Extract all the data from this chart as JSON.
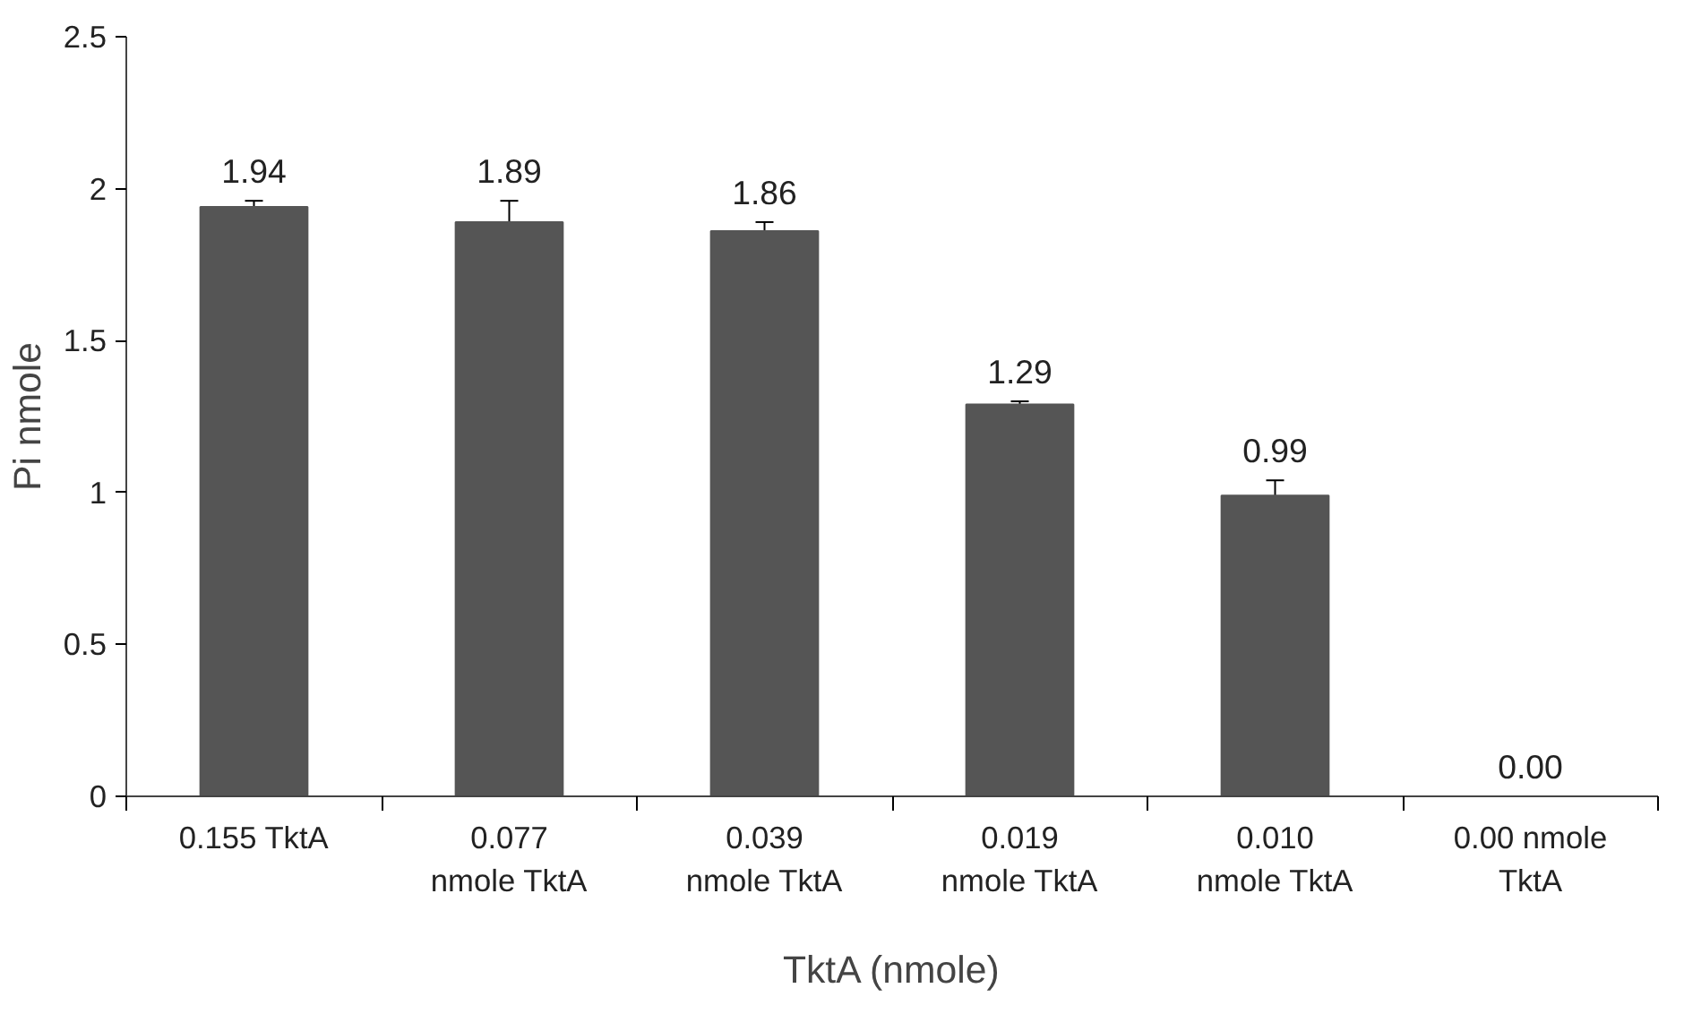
{
  "chart_data": {
    "type": "bar",
    "xlabel": "TktA (nmole)",
    "ylabel": "Pi nmole",
    "categories": [
      "0.155 TktA",
      "0.077\nnmole TktA",
      "0.039\nnmole TktA",
      "0.019\nnmole TktA",
      "0.010\nnmole TktA",
      "0.00 nmole\nTktA"
    ],
    "values": [
      1.94,
      1.89,
      1.86,
      1.29,
      0.99,
      0.0
    ],
    "errors": [
      0.02,
      0.07,
      0.03,
      0.01,
      0.05,
      0.0
    ],
    "value_labels": [
      "1.94",
      "1.89",
      "1.86",
      "1.29",
      "0.99",
      "0.00"
    ],
    "color": "#555555",
    "ylim": [
      0,
      2.5
    ],
    "yticks": [
      0,
      0.5,
      1,
      1.5,
      2,
      2.5
    ],
    "grid": false
  }
}
